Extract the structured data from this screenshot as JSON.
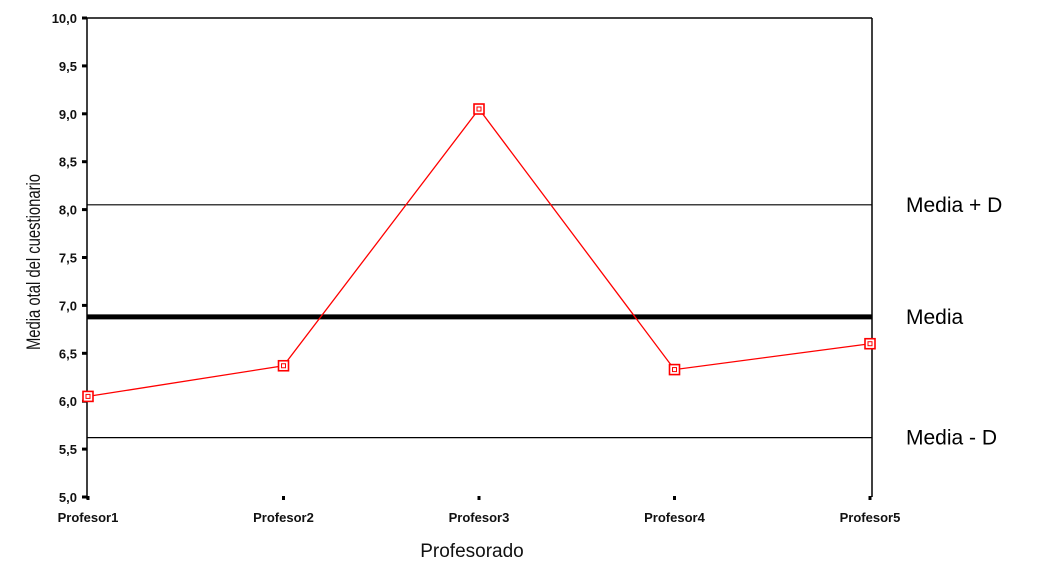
{
  "chart_data": {
    "type": "line",
    "xlabel": "Profesorado",
    "ylabel": "Media otal del cuestionario",
    "categories": [
      "Profesor1",
      "Profesor2",
      "Profesor3",
      "Profesor4",
      "Profesor5"
    ],
    "series": [
      {
        "values": [
          6.05,
          6.37,
          9.05,
          6.33,
          6.6
        ],
        "color": "#ff0000",
        "marker": "square"
      }
    ],
    "ylim": [
      5.0,
      10.0
    ],
    "yticks": [
      "5,0",
      "5,5",
      "6,0",
      "6,5",
      "7,0",
      "7,5",
      "8,0",
      "8,5",
      "9,0",
      "9,5",
      "10,0"
    ],
    "reference_lines": [
      {
        "label": "Media + D",
        "value": 8.05,
        "weight": "thin"
      },
      {
        "label": "Media",
        "value": 6.88,
        "weight": "thick"
      },
      {
        "label": "Media - D",
        "value": 5.62,
        "weight": "thin"
      }
    ],
    "grid": false
  }
}
